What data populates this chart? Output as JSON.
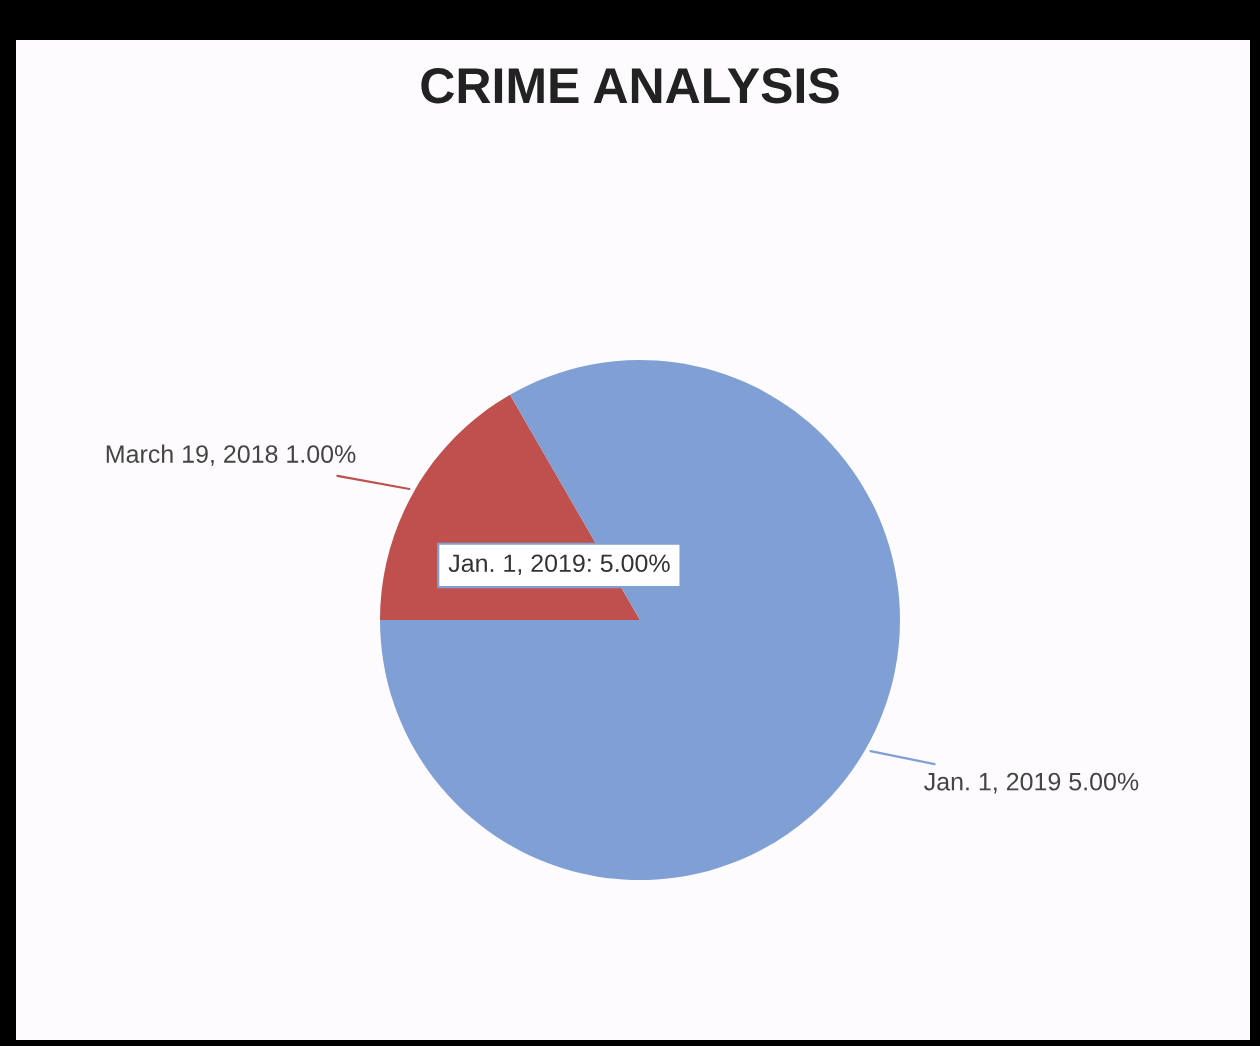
{
  "chart_data": {
    "type": "pie",
    "title": "CRIME ANALYSIS",
    "categories": [
      "March 19, 2018",
      "Jan. 1, 2019"
    ],
    "values": [
      1,
      5
    ],
    "value_labels": [
      "1.00%",
      "5.00%"
    ],
    "colors": [
      "#c0504e",
      "#7f9fd5"
    ],
    "annotations": [
      "Jan. 1, 2019: 5.00%"
    ]
  }
}
